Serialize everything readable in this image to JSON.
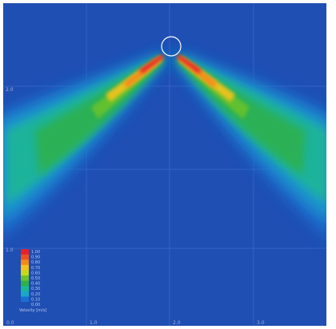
{
  "chart_data": {
    "type": "heatmap",
    "title": "",
    "x_ticks": [
      "0.0",
      "1.0",
      "2.0",
      "3.0"
    ],
    "y_ticks": [
      "1.0",
      "2.0"
    ],
    "colorbar": {
      "title": "Velocity [m/s]",
      "labels": [
        "1.00",
        "0.90",
        "0.80",
        "0.70",
        "0.60",
        "0.50",
        "0.40",
        "0.30",
        "0.20",
        "0.10",
        "0.00"
      ],
      "colors": [
        "#e8202a",
        "#f0501e",
        "#f58a1a",
        "#f5c31c",
        "#c8d81c",
        "#6cc32a",
        "#2fb04a",
        "#1ab890",
        "#1aa8c8",
        "#1b6fd2",
        "#1f4fb3"
      ]
    },
    "background_color": "#1f4fb3",
    "grid": true,
    "annotations": [
      "circle marker at top center (source point)"
    ]
  }
}
